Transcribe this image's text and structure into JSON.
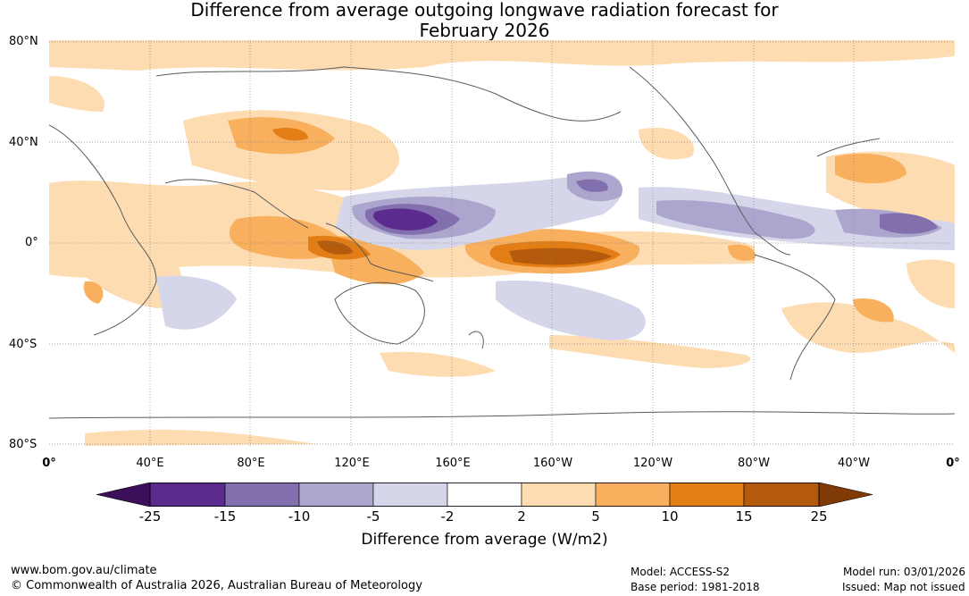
{
  "title": {
    "line1": "Difference from average outgoing longwave radiation forecast for",
    "line2": "February 2026"
  },
  "axes": {
    "lat_labels": [
      "80°N",
      "40°N",
      "0°",
      "40°S",
      "80°S"
    ],
    "lon_labels": [
      "0°",
      "40°E",
      "80°E",
      "120°E",
      "160°E",
      "160°W",
      "120°W",
      "80°W",
      "40°W",
      "0°"
    ]
  },
  "colorbar": {
    "ticks": [
      "-25",
      "-15",
      "-10",
      "-5",
      "-2",
      "2",
      "5",
      "10",
      "15",
      "25"
    ],
    "label": "Difference from average (W/m2)",
    "colors": [
      "#3b0f5a",
      "#5b2c8d",
      "#8270ae",
      "#aca6cf",
      "#d6d6ea",
      "#ffffff",
      "#fddcb2",
      "#f9b05e",
      "#e37d16",
      "#b45a0c",
      "#7f3a05"
    ]
  },
  "footer": {
    "url": "www.bom.gov.au/climate",
    "copyright": "© Commonwealth of Australia 2026, Australian Bureau of Meteorology",
    "model": "Model: ACCESS-S2",
    "base_period": "Base period: 1981-2018",
    "model_run": "Model run: 03/01/2026",
    "issued": "Issued: Map not issued"
  }
}
